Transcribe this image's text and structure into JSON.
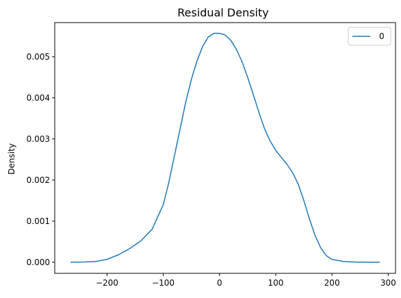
{
  "chart_data": {
    "type": "line",
    "title": "Residual Density",
    "xlabel": "",
    "ylabel": "Density",
    "xlim": [
      -293,
      313
    ],
    "ylim": [
      -0.00027,
      0.00583
    ],
    "xticks": [
      -200,
      -100,
      0,
      100,
      200,
      300
    ],
    "yticks": [
      0.0,
      0.001,
      0.002,
      0.003,
      0.004,
      0.005
    ],
    "xtick_labels": [
      "−200",
      "−100",
      "0",
      "100",
      "200",
      "300"
    ],
    "ytick_labels": [
      "0.000",
      "0.001",
      "0.002",
      "0.003",
      "0.004",
      "0.005"
    ],
    "grid": false,
    "legend_position": "top-right",
    "series": [
      {
        "name": "0",
        "color": "#1f77b4",
        "x": [
          -265,
          -240,
          -220,
          -200,
          -180,
          -160,
          -140,
          -120,
          -100,
          -90,
          -80,
          -70,
          -60,
          -50,
          -40,
          -30,
          -20,
          -10,
          0,
          10,
          20,
          30,
          40,
          50,
          60,
          70,
          80,
          90,
          100,
          110,
          120,
          130,
          140,
          150,
          160,
          170,
          180,
          190,
          200,
          220,
          240,
          260,
          285
        ],
        "values": [
          0.0,
          5e-06,
          2e-05,
          7e-05,
          0.00018,
          0.00033,
          0.00052,
          0.0008,
          0.0014,
          0.00195,
          0.0026,
          0.00325,
          0.0039,
          0.00445,
          0.0049,
          0.00525,
          0.00548,
          0.00557,
          0.00557,
          0.00553,
          0.0054,
          0.00518,
          0.00488,
          0.0045,
          0.00408,
          0.00365,
          0.00325,
          0.00295,
          0.00272,
          0.00255,
          0.00238,
          0.00218,
          0.0019,
          0.0015,
          0.00105,
          0.00065,
          0.00035,
          0.00016,
          7e-05,
          2e-05,
          5e-06,
          0.0,
          0.0
        ]
      }
    ]
  }
}
